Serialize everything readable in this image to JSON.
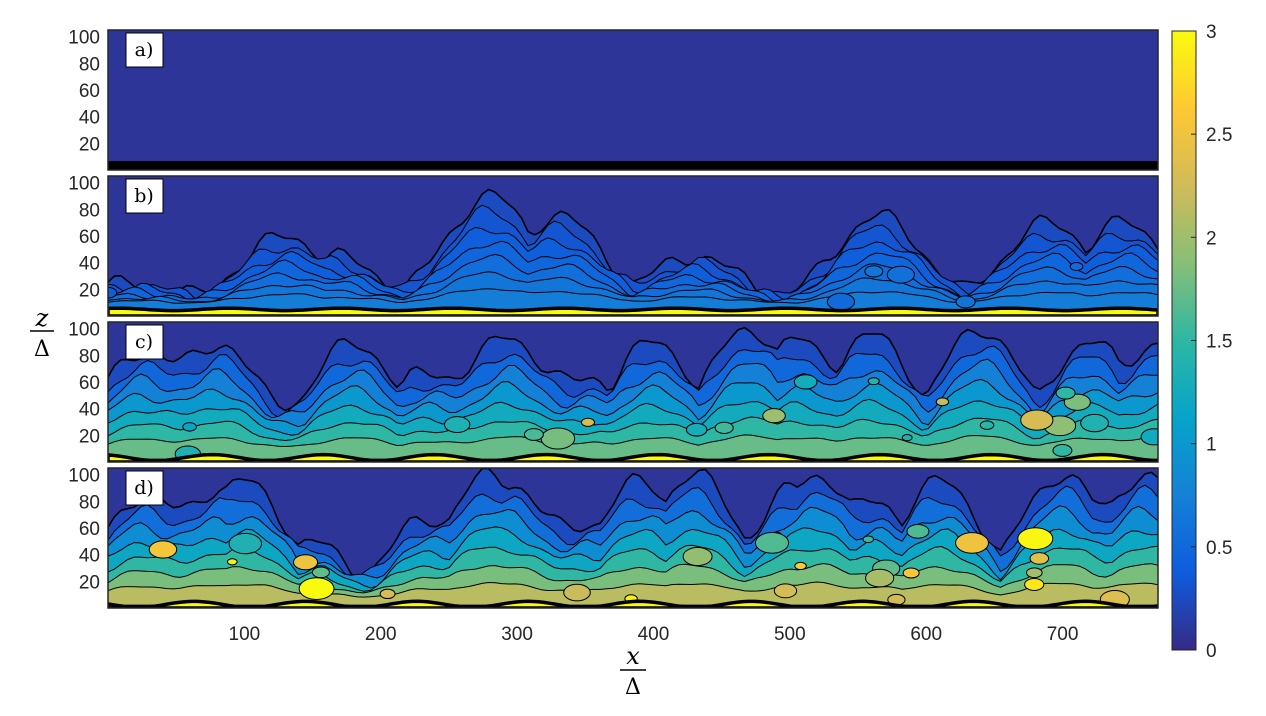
{
  "chart_data": {
    "type": "heatmap",
    "colormap": "parula",
    "contours": "black filled-contour lines",
    "xlabel": {
      "numerator": "x",
      "denominator": "Δ"
    },
    "ylabel": {
      "numerator": "z",
      "denominator": "Δ"
    },
    "xlim": [
      0,
      770
    ],
    "ylim": [
      0,
      105
    ],
    "xticks": [
      100,
      200,
      300,
      400,
      500,
      600,
      700
    ],
    "yticks": [
      20,
      40,
      60,
      80,
      100
    ],
    "colorbar": {
      "range": [
        0,
        3
      ],
      "ticks": [
        "0",
        "0.5",
        "1",
        "1.5",
        "2",
        "2.5",
        "3"
      ]
    },
    "panels": [
      {
        "label": "a)",
        "bed_level": 8,
        "intensity": 0.0,
        "peaks": []
      },
      {
        "label": "b)",
        "bed_level": 9,
        "intensity": 0.35,
        "peaks": [
          [
            20,
            25
          ],
          [
            130,
            60
          ],
          [
            165,
            45
          ],
          [
            280,
            90
          ],
          [
            330,
            75
          ],
          [
            430,
            45
          ],
          [
            565,
            75
          ],
          [
            690,
            70
          ],
          [
            745,
            70
          ]
        ]
      },
      {
        "label": "c)",
        "bed_level": 6,
        "intensity": 1.15,
        "peaks": [
          [
            60,
            75
          ],
          [
            180,
            90
          ],
          [
            300,
            80
          ],
          [
            400,
            90
          ],
          [
            470,
            100
          ],
          [
            560,
            95
          ],
          [
            640,
            100
          ],
          [
            720,
            90
          ]
        ]
      },
      {
        "label": "d)",
        "bed_level": 5,
        "intensity": 1.45,
        "peaks": [
          [
            100,
            95
          ],
          [
            280,
            100
          ],
          [
            390,
            95
          ],
          [
            430,
            100
          ],
          [
            520,
            100
          ],
          [
            610,
            95
          ],
          [
            700,
            100
          ],
          [
            760,
            100
          ]
        ]
      }
    ]
  },
  "colors": {
    "parula": [
      "#352a87",
      "#0f5cdd",
      "#1481d6",
      "#06a4ca",
      "#2eb7a4",
      "#87bf77",
      "#d1bb59",
      "#fec832",
      "#f9fb0e"
    ],
    "contour": "#000000"
  }
}
